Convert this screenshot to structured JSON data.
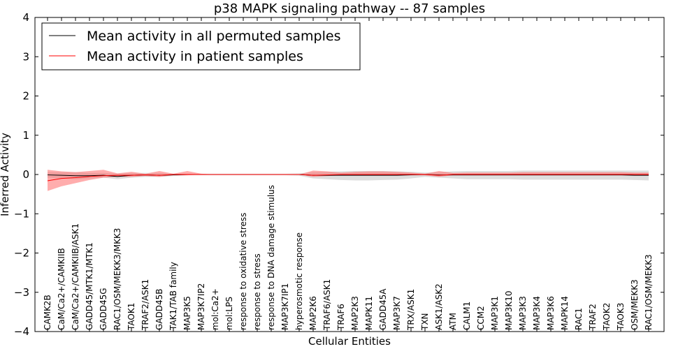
{
  "chart_data": {
    "type": "line",
    "title": "p38 MAPK signaling pathway -- 87 samples",
    "xlabel": "Cellular Entities",
    "ylabel": "Inferred Activity",
    "ylim": [
      -4,
      4
    ],
    "yticks": [
      "−4",
      "−3",
      "−2",
      "−1",
      "0",
      "1",
      "2",
      "3",
      "4"
    ],
    "categories": [
      "CAMK2B",
      "CaM/Ca2+/CAMKIIB",
      "CaM/Ca2+/CAMKIIB/ASK1",
      "GADD45/MTK1/MTK1",
      "GADD45G",
      "RAC1/OSM/MEKK3/MKK3",
      "TAOK1",
      "TRAF2/ASK1",
      "GADD45B",
      "TAK1/TAB family",
      "MAP3K5",
      "MAP3K7IP2",
      "mol:Ca2+",
      "mol:LPS",
      "response to oxidative stress",
      "response to stress",
      "response to DNA damage stimulus",
      "MAP3K7IP1",
      "hyperosmotic response",
      "MAP2K6",
      "TRAF6/ASK1",
      "TRAF6",
      "MAP2K3",
      "MAPK11",
      "GADD45A",
      "MAP3K7",
      "TRX/ASK1",
      "TXN",
      "ASK1/ASK2",
      "ATM",
      "CALM1",
      "CCM2",
      "MAP3K1",
      "MAP3K10",
      "MAP3K3",
      "MAP3K4",
      "MAP3K6",
      "MAPK14",
      "RAC1",
      "TRAF2",
      "TAOK2",
      "TAOK3",
      "OSM/MEKK3",
      "RAC1/OSM/MEKK3"
    ],
    "legend_position": "top-left",
    "series": [
      {
        "name": "Mean activity in all permuted samples",
        "color": "#000000",
        "band_color": "#c8c8c8",
        "values": [
          -0.01,
          -0.02,
          -0.03,
          -0.03,
          -0.02,
          -0.05,
          -0.02,
          -0.01,
          -0.02,
          -0.01,
          0,
          0,
          0,
          0,
          0,
          0,
          0,
          0,
          0,
          -0.02,
          -0.02,
          -0.02,
          -0.02,
          -0.02,
          -0.02,
          -0.02,
          -0.01,
          0,
          -0.01,
          -0.01,
          -0.01,
          -0.01,
          -0.01,
          -0.01,
          -0.01,
          -0.01,
          -0.01,
          -0.01,
          -0.01,
          -0.01,
          -0.01,
          -0.01,
          -0.02,
          -0.02
        ],
        "lower": [
          -0.08,
          -0.1,
          -0.12,
          -0.1,
          -0.08,
          -0.12,
          -0.08,
          -0.06,
          -0.06,
          -0.04,
          -0.02,
          -0.02,
          -0.02,
          -0.02,
          -0.02,
          -0.02,
          -0.02,
          -0.02,
          -0.03,
          -0.1,
          -0.12,
          -0.14,
          -0.15,
          -0.15,
          -0.14,
          -0.13,
          -0.1,
          -0.06,
          -0.08,
          -0.1,
          -0.12,
          -0.12,
          -0.12,
          -0.12,
          -0.13,
          -0.13,
          -0.13,
          -0.13,
          -0.13,
          -0.13,
          -0.13,
          -0.13,
          -0.14,
          -0.15
        ],
        "upper": [
          0.06,
          0.06,
          0.06,
          0.04,
          0.04,
          0.02,
          0.04,
          0.04,
          0.04,
          0.02,
          0.02,
          0.02,
          0.02,
          0.02,
          0.02,
          0.02,
          0.02,
          0.02,
          0.03,
          0.06,
          0.07,
          0.08,
          0.09,
          0.09,
          0.09,
          0.08,
          0.07,
          0.05,
          0.06,
          0.08,
          0.09,
          0.09,
          0.09,
          0.09,
          0.1,
          0.1,
          0.1,
          0.1,
          0.1,
          0.1,
          0.1,
          0.1,
          0.1,
          0.1
        ]
      },
      {
        "name": "Mean activity in patient samples",
        "color": "#ff0000",
        "band_color": "#ff6a6a",
        "values": [
          -0.16,
          -0.1,
          -0.08,
          -0.05,
          -0.03,
          -0.02,
          -0.02,
          -0.01,
          -0.02,
          0,
          0,
          0,
          0,
          0,
          0,
          0,
          0,
          0,
          0,
          -0.02,
          -0.01,
          0,
          0,
          0,
          0,
          0,
          0,
          0,
          -0.02,
          0,
          0,
          0,
          0,
          0,
          0,
          0,
          0,
          0,
          0,
          0,
          0,
          0,
          0,
          0
        ],
        "lower": [
          -0.42,
          -0.3,
          -0.22,
          -0.14,
          -0.08,
          -0.06,
          -0.06,
          -0.04,
          -0.06,
          -0.02,
          -0.02,
          0,
          0,
          0,
          0,
          0,
          0,
          0,
          0,
          -0.06,
          -0.04,
          -0.02,
          -0.02,
          -0.02,
          -0.02,
          -0.02,
          -0.02,
          -0.02,
          -0.06,
          -0.02,
          -0.02,
          -0.02,
          -0.02,
          -0.02,
          -0.02,
          -0.02,
          -0.02,
          -0.02,
          -0.02,
          -0.02,
          -0.02,
          -0.02,
          -0.02,
          -0.02
        ],
        "upper": [
          0.12,
          0.08,
          0.06,
          0.09,
          0.12,
          0.03,
          0.07,
          0.02,
          0.09,
          0.02,
          0.09,
          0.02,
          0,
          0,
          0,
          0,
          0,
          0,
          0,
          0.1,
          0.08,
          0.05,
          0.07,
          0.08,
          0.08,
          0.07,
          0.05,
          0.02,
          0.09,
          0.04,
          0.05,
          0.05,
          0.05,
          0.05,
          0.06,
          0.06,
          0.06,
          0.06,
          0.06,
          0.06,
          0.06,
          0.06,
          0.05,
          0.05
        ]
      }
    ]
  }
}
